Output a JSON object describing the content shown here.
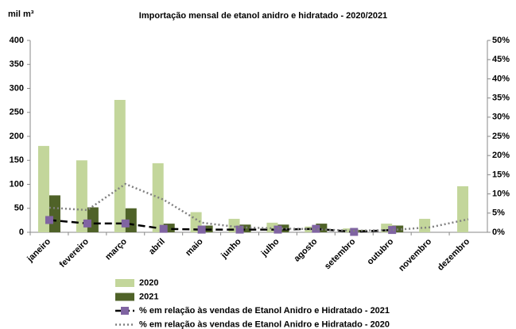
{
  "chart_data": {
    "type": "bar",
    "title": "Importação mensal de etanol  anidro e hidratado - 2020/2021",
    "y_label": "mil m³",
    "categories": [
      "janeiro",
      "fevereiro",
      "março",
      "abril",
      "maio",
      "junho",
      "julho",
      "agosto",
      "setembro",
      "outubro",
      "novembro",
      "dezembro"
    ],
    "series": [
      {
        "name": "2020",
        "type": "bar",
        "color": "#c3d69b",
        "values": [
          180,
          150,
          276,
          144,
          42,
          28,
          20,
          12,
          8,
          18,
          28,
          96
        ]
      },
      {
        "name": "2021",
        "type": "bar",
        "color": "#4f6228",
        "values": [
          77,
          52,
          50,
          18,
          14,
          16,
          16,
          18,
          5,
          14,
          null,
          null
        ]
      },
      {
        "name": "% em relação às vendas de Etanol Anidro e Hidratado - 2021",
        "type": "line",
        "axis": "y2",
        "color": "#000000",
        "marker_color": "#8064a2",
        "dash": "dashed",
        "values": [
          3.2,
          2.3,
          2.3,
          0.9,
          0.7,
          0.7,
          0.7,
          0.9,
          0.1,
          0.6,
          null,
          null
        ]
      },
      {
        "name": "% em relação às vendas de Etanol Anidro e Hidratado - 2020",
        "type": "line",
        "axis": "y2",
        "color": "#808080",
        "dash": "dotted",
        "values": [
          6.4,
          5.8,
          12.6,
          8.5,
          2.5,
          1.3,
          1.0,
          0.8,
          0.4,
          0.6,
          1.3,
          3.4
        ]
      }
    ],
    "ylim": [
      0,
      400
    ],
    "yticks": [
      0,
      50,
      100,
      150,
      200,
      250,
      300,
      350,
      400
    ],
    "y2lim": [
      0,
      50
    ],
    "y2ticks": [
      {
        "value": 0,
        "label": "0%"
      },
      {
        "value": 5,
        "label": "5%"
      },
      {
        "value": 10,
        "label": "10%"
      },
      {
        "value": 15,
        "label": "15%"
      },
      {
        "value": 20,
        "label": "20%"
      },
      {
        "value": 25,
        "label": "25%"
      },
      {
        "value": 30,
        "label": "30%"
      },
      {
        "value": 35,
        "label": "35%"
      },
      {
        "value": 40,
        "label": "40%"
      },
      {
        "value": 45,
        "label": "45%"
      },
      {
        "value": 50,
        "label": "50%"
      }
    ],
    "grid": false
  }
}
